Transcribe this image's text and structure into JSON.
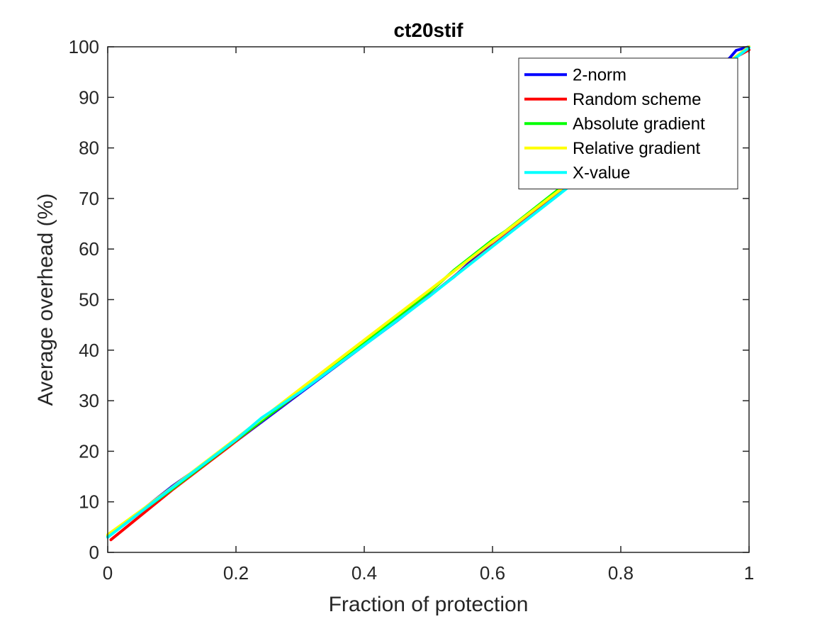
{
  "chart_data": {
    "type": "line",
    "title": "ct20stif",
    "xlabel": "Fraction of protection",
    "ylabel": "Average overhead (%)",
    "xlim": [
      0,
      1
    ],
    "ylim": [
      0,
      100
    ],
    "xticks": [
      0,
      0.2,
      0.4,
      0.6,
      0.8,
      1
    ],
    "xtick_labels": [
      "0",
      "0.2",
      "0.4",
      "0.6",
      "0.8",
      "1"
    ],
    "yticks": [
      0,
      10,
      20,
      30,
      40,
      50,
      60,
      70,
      80,
      90,
      100
    ],
    "ytick_labels": [
      "0",
      "10",
      "20",
      "30",
      "40",
      "50",
      "60",
      "70",
      "80",
      "90",
      "100"
    ],
    "grid": false,
    "box": true,
    "legend_position": "top-right",
    "series": [
      {
        "name": "2-norm",
        "color": "#0000ff",
        "x": [
          0,
          0.1,
          0.2,
          0.3,
          0.4,
          0.45,
          0.5,
          0.54,
          0.6,
          0.7,
          0.8,
          0.9,
          0.97,
          0.98,
          1.0
        ],
        "y": [
          3,
          13,
          22,
          31.5,
          41,
          45.7,
          50.6,
          54.5,
          61.5,
          71.2,
          80.8,
          90.5,
          97.8,
          99.3,
          100
        ]
      },
      {
        "name": "Random scheme",
        "color": "#ff0000",
        "x": [
          0.005,
          0.1,
          0.19,
          0.245,
          0.3,
          0.4,
          0.44,
          0.5,
          0.6,
          0.7,
          0.8,
          0.9,
          0.98,
          1.0
        ],
        "y": [
          2.5,
          12.3,
          21,
          26.5,
          31.7,
          41,
          45.2,
          50.5,
          60.7,
          70.5,
          80.3,
          90.2,
          98,
          99.4
        ]
      },
      {
        "name": "Absolute gradient",
        "color": "#00ff00",
        "x": [
          0,
          0.06,
          0.1,
          0.2,
          0.3,
          0.4,
          0.5,
          0.54,
          0.6,
          0.62,
          0.7,
          0.8,
          0.9,
          1.0
        ],
        "y": [
          3.2,
          8.8,
          12.5,
          22.2,
          31.8,
          41.6,
          51.3,
          55.8,
          61.8,
          63.5,
          71.5,
          81,
          90.4,
          100
        ]
      },
      {
        "name": "Relative gradient",
        "color": "#ffff00",
        "x": [
          0,
          0.06,
          0.1,
          0.2,
          0.3,
          0.4,
          0.5,
          0.6,
          0.7,
          0.8,
          0.9,
          1.0
        ],
        "y": [
          3.5,
          9,
          12.8,
          22.5,
          32.3,
          42,
          51.7,
          61.5,
          71.2,
          80.9,
          90.5,
          100
        ]
      },
      {
        "name": "X-value",
        "color": "#00ffff",
        "x": [
          0,
          0.1,
          0.2,
          0.24,
          0.3,
          0.4,
          0.5,
          0.6,
          0.7,
          0.8,
          0.9,
          1.0
        ],
        "y": [
          3,
          12.7,
          22.3,
          26.6,
          31.7,
          41,
          50.5,
          60.5,
          70.4,
          80.4,
          90.3,
          99.8
        ]
      }
    ]
  }
}
